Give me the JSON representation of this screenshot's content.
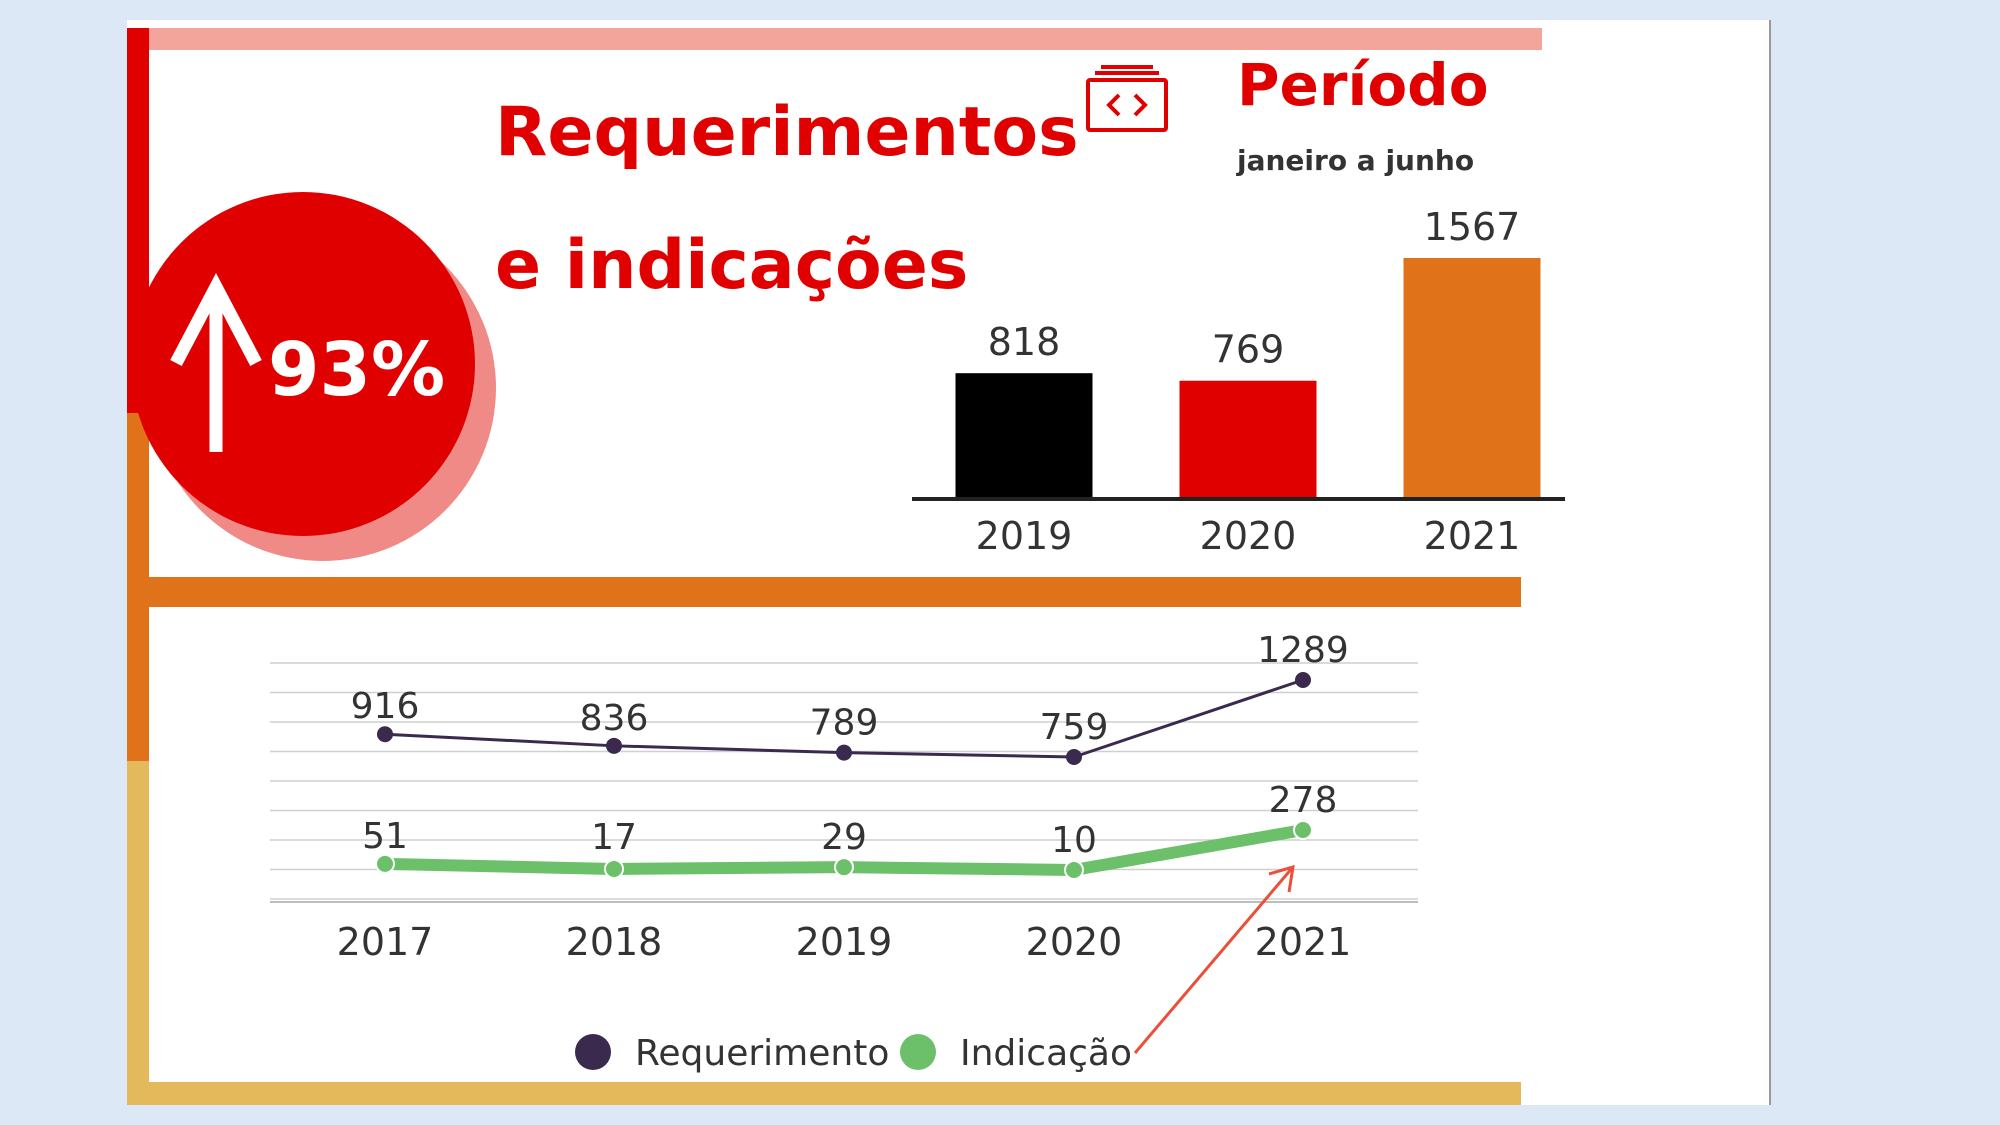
{
  "header": {
    "title_line1": "Requerimentos",
    "title_line2": "e indicações",
    "badge_value": "93%",
    "period_title": "Período",
    "period_subtitle": "janeiro a junho"
  },
  "colors": {
    "red": "#e00000",
    "salmon": "#f3a59c",
    "orange": "#e0731a",
    "gold": "#e3b95c",
    "black": "#000000",
    "purple": "#3a2a4e",
    "green": "#6cc06a",
    "arrow": "#e8503a"
  },
  "icons": {
    "period": "code-window-icon",
    "badge": "arrow-up-icon"
  },
  "chart_data": [
    {
      "type": "bar",
      "categories": [
        "2019",
        "2020",
        "2021"
      ],
      "values": [
        818,
        769,
        1567
      ],
      "colors": [
        "#000000",
        "#e00000",
        "#e0731a"
      ],
      "ylim": [
        0,
        1650
      ]
    },
    {
      "type": "line",
      "x": [
        "2017",
        "2018",
        "2019",
        "2020",
        "2021"
      ],
      "series": [
        {
          "name": "Requerimento",
          "values": [
            916,
            836,
            789,
            759,
            1289
          ],
          "color": "#3a2a4e"
        },
        {
          "name": "Indicação",
          "values": [
            51,
            17,
            29,
            10,
            278
          ],
          "color": "#6cc06a"
        }
      ],
      "grid": true,
      "legend": "bottom"
    }
  ]
}
